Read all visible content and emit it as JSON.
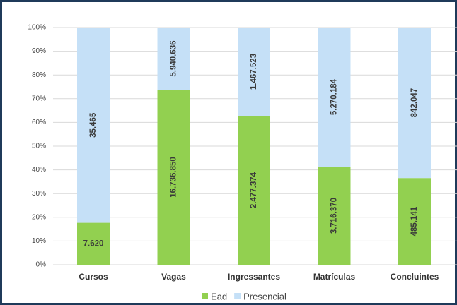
{
  "chart_data": {
    "type": "stacked_percent_bar",
    "categories": [
      "Cursos",
      "Vagas",
      "Ingressantes",
      "Matrículas",
      "Concluintes"
    ],
    "series": [
      {
        "name": "Ead",
        "color": "#92d050",
        "values": [
          7620,
          16736850,
          2477374,
          3716370,
          485141
        ],
        "value_labels": [
          "7.620",
          "16.736.850",
          "2.477.374",
          "3.716.370",
          "485.141"
        ]
      },
      {
        "name": "Presencial",
        "color": "#c5e0f7",
        "values": [
          35465,
          5940636,
          1467523,
          5270184,
          842047
        ],
        "value_labels": [
          "35.465",
          "5.940.636",
          "1.467.523",
          "5.270.184",
          "842.047"
        ]
      }
    ],
    "ylim": [
      0,
      100
    ],
    "yticks": [
      {
        "value": 0,
        "label": "0%"
      },
      {
        "value": 10,
        "label": "10%"
      },
      {
        "value": 20,
        "label": "20%"
      },
      {
        "value": 30,
        "label": "30%"
      },
      {
        "value": 40,
        "label": "40%"
      },
      {
        "value": 50,
        "label": "50%"
      },
      {
        "value": 60,
        "label": "60%"
      },
      {
        "value": 70,
        "label": "70%"
      },
      {
        "value": 80,
        "label": "80%"
      },
      {
        "value": 90,
        "label": "90%"
      },
      {
        "value": 100,
        "label": "100%"
      }
    ],
    "grid": true,
    "legend": "bottom"
  }
}
